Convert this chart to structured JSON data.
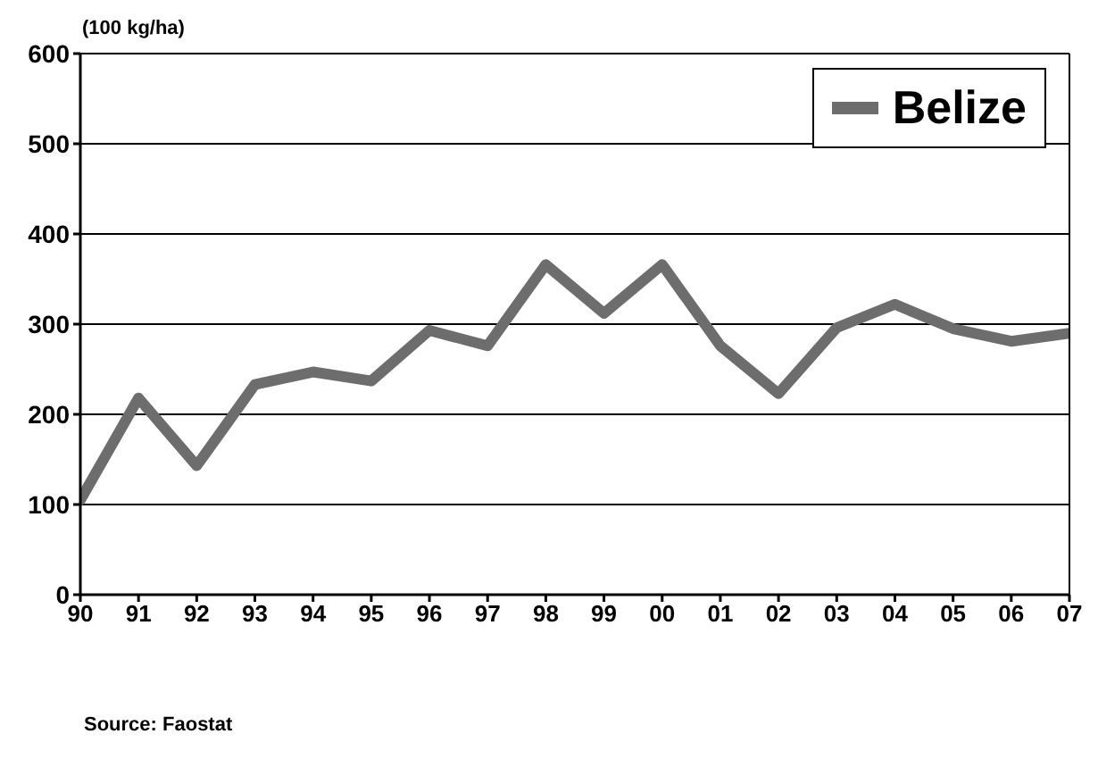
{
  "chart_data": {
    "type": "line",
    "ylabel": "(100 kg/ha)",
    "categories": [
      "90",
      "91",
      "92",
      "93",
      "94",
      "95",
      "96",
      "97",
      "98",
      "99",
      "00",
      "01",
      "02",
      "03",
      "04",
      "05",
      "06",
      "07"
    ],
    "series": [
      {
        "name": "Belize",
        "color": "#6d6d6d",
        "values": [
          105,
          218,
          143,
          233,
          247,
          237,
          293,
          276,
          366,
          312,
          366,
          276,
          223,
          296,
          322,
          295,
          281,
          290
        ]
      }
    ],
    "ylim": [
      0,
      600
    ],
    "yticks": [
      0,
      100,
      200,
      300,
      400,
      500,
      600
    ],
    "grid": "y",
    "legend": "top right",
    "marker": "none",
    "line_style": "solid",
    "annotations": [
      "Source: Faostat"
    ]
  }
}
